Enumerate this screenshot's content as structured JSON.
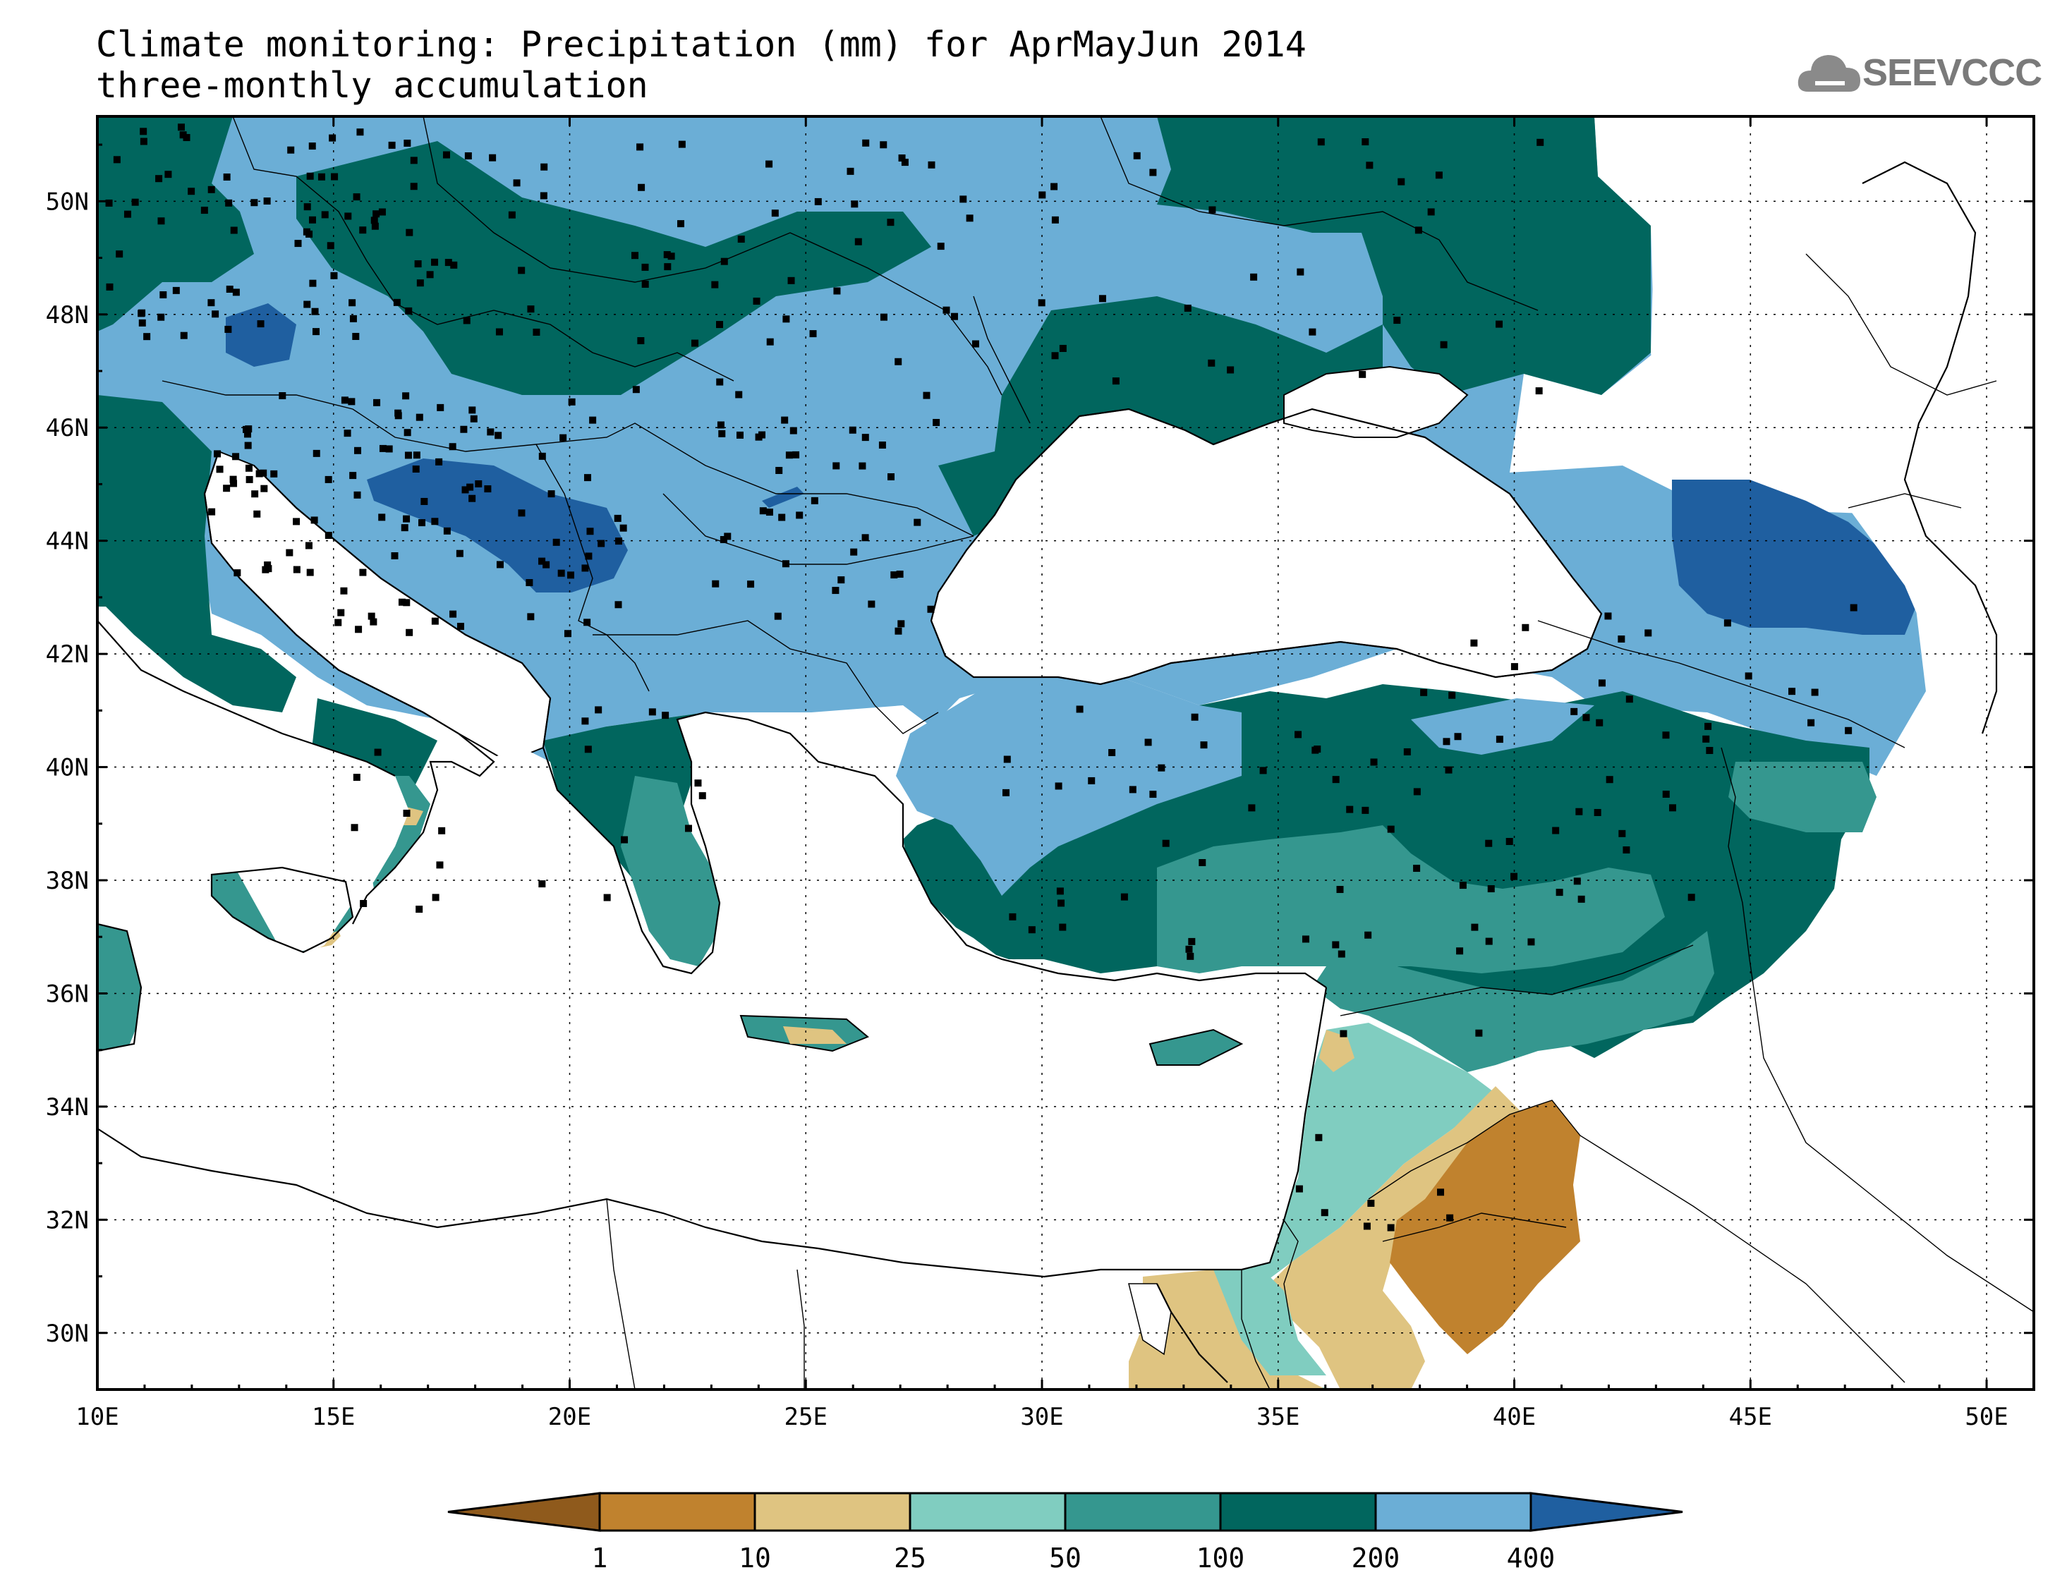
{
  "header": {
    "title_line1": "Climate monitoring: Precipitation (mm) for AprMayJun 2014",
    "title_line2": "three-monthly accumulation",
    "logo_text": "SEEVCCC"
  },
  "map": {
    "lon_range": [
      10,
      51
    ],
    "lat_range": [
      29,
      51.5
    ],
    "lon_ticks": [
      "10E",
      "15E",
      "20E",
      "25E",
      "30E",
      "35E",
      "40E",
      "45E",
      "50E"
    ],
    "lat_ticks": [
      "30N",
      "32N",
      "34N",
      "36N",
      "38N",
      "40N",
      "42N",
      "44N",
      "46N",
      "48N",
      "50N"
    ],
    "grid": "dotted"
  },
  "legend": {
    "thresholds": [
      "1",
      "10",
      "25",
      "50",
      "100",
      "200",
      "400"
    ],
    "colors": [
      "#8f5a1c",
      "#c0822e",
      "#dfc481",
      "#80cdc0",
      "#35978f",
      "#01665e",
      "#6baed6",
      "#1f5fa0"
    ]
  }
}
